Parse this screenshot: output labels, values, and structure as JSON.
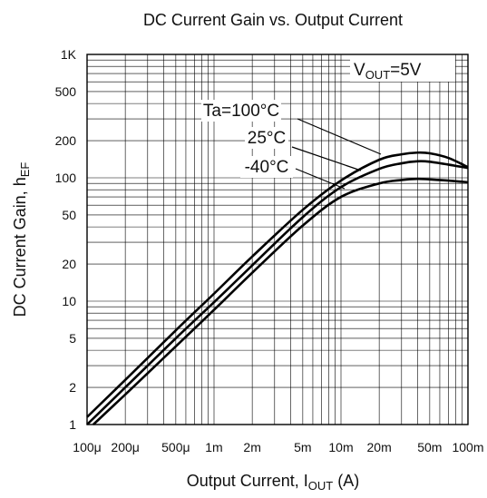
{
  "chart_data": {
    "type": "line",
    "title": "DC Current Gain vs. Output Current",
    "xlabel": {
      "prefix": "Output Current, I",
      "sub": "OUT",
      "suffix": " (A)"
    },
    "ylabel": {
      "prefix": "DC Current Gain, h",
      "sub": "EF"
    },
    "x_scale": "log",
    "y_scale": "log",
    "xlim": [
      0.0001,
      0.1
    ],
    "ylim": [
      1,
      1000
    ],
    "grid": true,
    "x_ticks": [
      {
        "value": 0.0001,
        "label": "100μ"
      },
      {
        "value": 0.0002,
        "label": "200μ"
      },
      {
        "value": 0.0005,
        "label": "500μ"
      },
      {
        "value": 0.001,
        "label": "1m"
      },
      {
        "value": 0.002,
        "label": "2m"
      },
      {
        "value": 0.005,
        "label": "5m"
      },
      {
        "value": 0.01,
        "label": "10m"
      },
      {
        "value": 0.02,
        "label": "20m"
      },
      {
        "value": 0.05,
        "label": "50m"
      },
      {
        "value": 0.1,
        "label": "100m"
      }
    ],
    "y_ticks": [
      {
        "value": 1,
        "label": "1"
      },
      {
        "value": 2,
        "label": "2"
      },
      {
        "value": 5,
        "label": "5"
      },
      {
        "value": 10,
        "label": "10"
      },
      {
        "value": 20,
        "label": "20"
      },
      {
        "value": 50,
        "label": "50"
      },
      {
        "value": 100,
        "label": "100"
      },
      {
        "value": 200,
        "label": "200"
      },
      {
        "value": 500,
        "label": "500"
      },
      {
        "value": 1000,
        "label": "1K"
      }
    ],
    "condition": {
      "prefix": "V",
      "sub": "OUT",
      "suffix": "=5V"
    },
    "series": [
      {
        "name": "Ta=100°C",
        "x": [
          0.0001,
          0.0002,
          0.0005,
          0.001,
          0.002,
          0.005,
          0.01,
          0.02,
          0.03,
          0.04,
          0.05,
          0.07,
          0.1
        ],
        "y": [
          1.15,
          2.3,
          5.8,
          11.5,
          23,
          55,
          95,
          140,
          155,
          160,
          158,
          145,
          122
        ]
      },
      {
        "name": "25°C",
        "x": [
          0.0001,
          0.0002,
          0.0005,
          0.001,
          0.002,
          0.005,
          0.01,
          0.02,
          0.03,
          0.04,
          0.05,
          0.07,
          0.1
        ],
        "y": [
          1.0,
          2.0,
          5.0,
          9.8,
          19.5,
          48,
          84,
          118,
          131,
          136,
          135,
          128,
          120
        ]
      },
      {
        "name": "-40°C",
        "x": [
          0.000112,
          0.0002,
          0.0005,
          0.001,
          0.002,
          0.005,
          0.01,
          0.02,
          0.03,
          0.04,
          0.05,
          0.07,
          0.1
        ],
        "y": [
          1.0,
          1.75,
          4.3,
          8.5,
          17,
          41,
          70,
          90,
          96,
          98,
          97,
          95,
          92
        ]
      }
    ]
  }
}
